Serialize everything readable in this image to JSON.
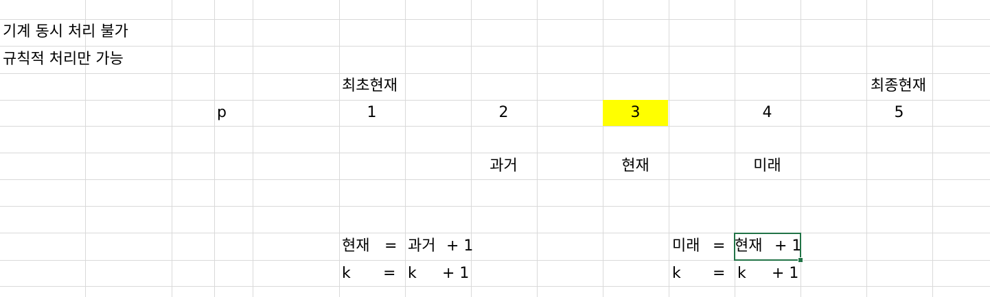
{
  "cells": {
    "note1": "기계 동시 처리 불가",
    "note2": "규칙적 처리만 가능",
    "label_first": "최초현재",
    "label_last": "최종현재",
    "p_label": "p",
    "n1": "1",
    "n2": "2",
    "n3": "3",
    "n4": "4",
    "n5": "5",
    "past": "과거",
    "present": "현재",
    "future": "미래",
    "eq1_lhs": "현재",
    "eq1_eq": "=",
    "eq1_rhs": "과거",
    "eq1_plus": "+ 1",
    "eq2_lhs": "미래",
    "eq2_eq": "=",
    "eq2_rhs": "현재",
    "eq2_plus": "+ 1",
    "k1_lhs": "k",
    "k1_eq": "=",
    "k1_rhs": "k",
    "k1_plus": "+ 1",
    "k2_lhs": "k",
    "k2_eq": "=",
    "k2_rhs": "k",
    "k2_plus": "+ 1"
  },
  "colors": {
    "highlight": "#ffff00",
    "selection": "#217346",
    "gridline": "#d9d9d9"
  }
}
